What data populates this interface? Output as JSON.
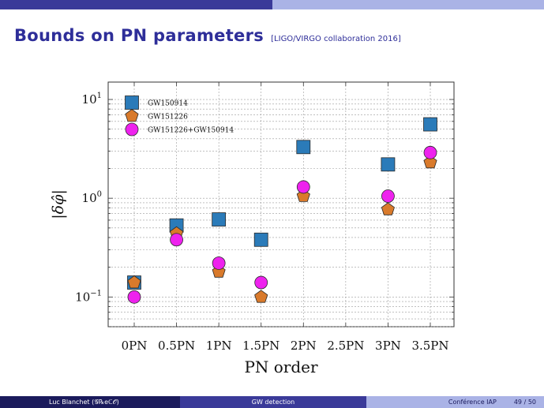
{
  "slide": {
    "title": "Bounds on PN parameters",
    "citation": "[LIGO/VIRGO collaboration 2016]"
  },
  "footer": {
    "author": "Luc Blanchet (𝒢℞eℂ𝒪)",
    "talk": "GW detection",
    "venue": "Conférence IAP",
    "page": "49",
    "page_sep": "/",
    "total": "50"
  },
  "colors": {
    "gw150914": "#2b7bb9",
    "gw151226": "#d97a2b",
    "combined": "#ee22ee",
    "bar_dark": "#1b1b5c",
    "bar_mid": "#3a3a99",
    "bar_light": "#aab3e6"
  },
  "chart_data": {
    "type": "scatter",
    "xlabel": "PN order",
    "ylabel": "|δφ̂|",
    "yscale": "log",
    "ylim": [
      0.05,
      15
    ],
    "categories": [
      "0PN",
      "0.5PN",
      "1PN",
      "1.5PN",
      "2PN",
      "2.5PN",
      "3PN",
      "3.5PN"
    ],
    "y_ticks": [
      {
        "value": 0.1,
        "base": "10",
        "exp": "−1"
      },
      {
        "value": 1,
        "base": "10",
        "exp": "0"
      },
      {
        "value": 10,
        "base": "10",
        "exp": "1"
      }
    ],
    "grid": true,
    "legend_position": "top-left",
    "series": [
      {
        "name": "GW150914",
        "marker": "square",
        "color": "#2b7bb9",
        "values": [
          0.14,
          0.53,
          0.61,
          0.38,
          3.3,
          null,
          2.2,
          5.6
        ]
      },
      {
        "name": "GW151226",
        "marker": "pentagon",
        "color": "#d97a2b",
        "values": [
          0.14,
          0.44,
          0.18,
          0.1,
          1.05,
          null,
          0.77,
          2.3
        ]
      },
      {
        "name": "GW151226+GW150914",
        "marker": "circle",
        "color": "#ee22ee",
        "values": [
          0.1,
          0.38,
          0.22,
          0.14,
          1.3,
          null,
          1.05,
          2.9
        ]
      }
    ]
  }
}
